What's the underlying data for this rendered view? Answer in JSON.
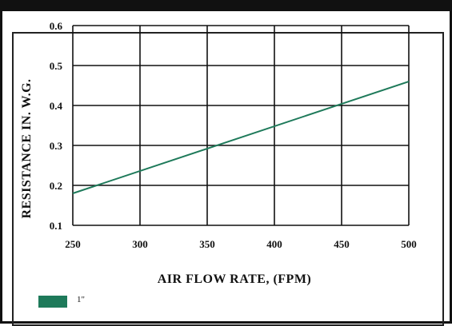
{
  "chart_data": {
    "type": "line",
    "xlabel": "AIR FLOW RATE, (FPM)",
    "ylabel": "RESISTANCE IN. W.G.",
    "xlim": [
      250,
      500
    ],
    "ylim": [
      0.1,
      0.6
    ],
    "x_ticks": [
      "250",
      "300",
      "350",
      "400",
      "450",
      "500"
    ],
    "y_ticks": [
      "0.1",
      "0.2",
      "0.3",
      "0.4",
      "0.5",
      "0.6"
    ],
    "grid": true,
    "legend_position": "bottom-left",
    "series": [
      {
        "name": "1\"",
        "color": "#1e7a5a",
        "x": [
          250,
          500
        ],
        "y": [
          0.18,
          0.46
        ]
      }
    ]
  }
}
